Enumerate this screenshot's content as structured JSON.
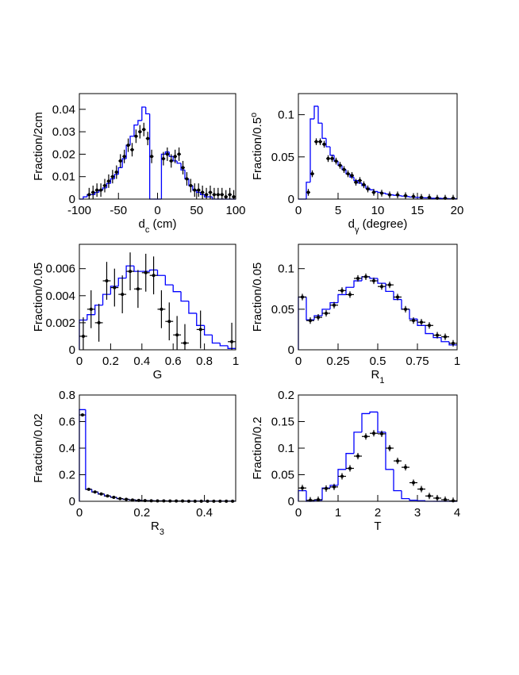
{
  "chart_data": [
    {
      "type": "histogram",
      "ylabel": {
        "text": "Fraction/2cm"
      },
      "xlabel": {
        "text": "d",
        "sub": "c",
        "suffix": " (cm)"
      },
      "xlim": [
        -100,
        100
      ],
      "xticks": [
        -100,
        -50,
        0,
        50,
        100
      ],
      "ylim": [
        0,
        0.047
      ],
      "yticks": [
        0,
        0.01,
        0.02,
        0.03,
        0.04
      ],
      "mc": {
        "color": "#0000ff",
        "bins": [
          -100,
          -95,
          -90,
          -85,
          -80,
          -75,
          -70,
          -65,
          -60,
          -55,
          -50,
          -45,
          -40,
          -35,
          -30,
          -25,
          -20,
          -15,
          -10,
          -5,
          0,
          5,
          10,
          15,
          20,
          25,
          30,
          35,
          40,
          45,
          50,
          55,
          60,
          65,
          70,
          75,
          80,
          85,
          90,
          95,
          100
        ],
        "counts": [
          0,
          0.001,
          0.002,
          0.002,
          0.003,
          0.004,
          0.005,
          0.007,
          0.009,
          0.011,
          0.014,
          0.018,
          0.024,
          0.028,
          0.033,
          0.035,
          0.041,
          0.038,
          0,
          0,
          0,
          0.02,
          0.021,
          0.019,
          0.017,
          0.016,
          0.013,
          0.009,
          0.006,
          0.004,
          0.003,
          0.002,
          0.001,
          0.001,
          0,
          0,
          0,
          0,
          0,
          0
        ]
      },
      "data": {
        "color": "#000000",
        "yerr": 0.003,
        "xerr": 2.5,
        "x": [
          -87.5,
          -82.5,
          -77.5,
          -72.5,
          -67.5,
          -62.5,
          -57.5,
          -52.5,
          -47.5,
          -42.5,
          -37.5,
          -32.5,
          -27.5,
          -22.5,
          -17.5,
          -12.5,
          -7.5,
          7.5,
          12.5,
          17.5,
          22.5,
          27.5,
          32.5,
          37.5,
          42.5,
          47.5,
          52.5,
          57.5,
          62.5,
          67.5,
          72.5,
          77.5,
          82.5,
          87.5,
          92.5,
          97.5
        ],
        "values": [
          0.002,
          0.003,
          0.004,
          0.004,
          0.006,
          0.008,
          0.01,
          0.012,
          0.017,
          0.019,
          0.024,
          0.022,
          0.028,
          0.03,
          0.031,
          0.027,
          0.019,
          0.018,
          0.02,
          0.017,
          0.019,
          0.02,
          0.014,
          0.009,
          0.006,
          0.004,
          0.004,
          0.003,
          0.002,
          0.003,
          0.002,
          0.002,
          0.002,
          0.001,
          0.002,
          0.001
        ]
      }
    },
    {
      "type": "histogram",
      "ylabel": {
        "text": "Fraction/0.5",
        "sup": "o"
      },
      "xlabel": {
        "text": "d",
        "sub": "γ",
        "suffix": " (degree)"
      },
      "xlim": [
        0,
        20
      ],
      "xticks": [
        0,
        5,
        10,
        15,
        20
      ],
      "ylim": [
        0,
        0.125
      ],
      "yticks": [
        0,
        0.05,
        0.1
      ],
      "mc": {
        "color": "#0000ff",
        "bins": [
          0,
          0.5,
          1,
          1.5,
          2,
          2.5,
          3,
          3.5,
          4,
          4.5,
          5,
          5.5,
          6,
          6.5,
          7,
          7.5,
          8,
          8.5,
          9,
          9.5,
          10,
          10.5,
          11,
          11.5,
          12,
          12.5,
          13,
          13.5,
          14,
          14.5,
          15,
          15.5,
          16,
          16.5,
          17,
          17.5,
          18,
          18.5,
          19,
          19.5,
          20
        ],
        "counts": [
          0,
          0,
          0.02,
          0.095,
          0.11,
          0.09,
          0.072,
          0.062,
          0.052,
          0.045,
          0.04,
          0.035,
          0.03,
          0.026,
          0.022,
          0.019,
          0.016,
          0.013,
          0.011,
          0.009,
          0.008,
          0.007,
          0.006,
          0.005,
          0.0045,
          0.004,
          0.0035,
          0.003,
          0.0025,
          0.002,
          0.002,
          0.0015,
          0.0015,
          0.001,
          0.001,
          0.001,
          0.0008,
          0.0006,
          0.0005,
          0.0004
        ]
      },
      "data": {
        "color": "#000000",
        "yerr": 0.004,
        "xerr": 0.25,
        "x": [
          1.25,
          1.75,
          2.25,
          2.75,
          3.25,
          3.75,
          4.25,
          4.75,
          5.25,
          5.75,
          6.25,
          6.75,
          7.25,
          7.75,
          8.25,
          8.75,
          9.5,
          10.5,
          11.5,
          12.5,
          13.5,
          14.5,
          15.5,
          16.5,
          17.5,
          18.5,
          19.5
        ],
        "values": [
          0.008,
          0.03,
          0.068,
          0.068,
          0.065,
          0.048,
          0.048,
          0.045,
          0.04,
          0.035,
          0.03,
          0.028,
          0.02,
          0.022,
          0.017,
          0.012,
          0.008,
          0.007,
          0.005,
          0.005,
          0.004,
          0.003,
          0.002,
          0.002,
          0.001,
          0.001,
          0.001
        ]
      }
    },
    {
      "type": "histogram",
      "ylabel": {
        "text": "Fraction/0.05"
      },
      "xlabel": {
        "text": "G"
      },
      "xlim": [
        0,
        1
      ],
      "xticks": [
        0,
        0.2,
        0.4,
        0.6,
        0.8,
        1
      ],
      "ylim": [
        0,
        0.0078
      ],
      "yticks": [
        0,
        0.002,
        0.004,
        0.006
      ],
      "mc": {
        "color": "#0000ff",
        "bins": [
          0,
          0.05,
          0.1,
          0.15,
          0.2,
          0.25,
          0.3,
          0.35,
          0.4,
          0.45,
          0.5,
          0.55,
          0.6,
          0.65,
          0.7,
          0.75,
          0.8,
          0.85,
          0.9,
          0.95,
          1
        ],
        "counts": [
          0.0022,
          0.0026,
          0.0033,
          0.0041,
          0.0047,
          0.0053,
          0.0062,
          0.0058,
          0.0058,
          0.0059,
          0.0055,
          0.0048,
          0.0043,
          0.0036,
          0.0027,
          0.0018,
          0.0011,
          0.0005,
          0.0003,
          0.0001
        ]
      },
      "data": {
        "color": "#000000",
        "yerr": 0.0014,
        "xerr": 0.025,
        "x": [
          0.025,
          0.075,
          0.125,
          0.175,
          0.225,
          0.275,
          0.325,
          0.375,
          0.425,
          0.475,
          0.525,
          0.575,
          0.625,
          0.675,
          0.775,
          0.975
        ],
        "values": [
          0.001,
          0.003,
          0.002,
          0.0051,
          0.0046,
          0.0041,
          0.0058,
          0.0045,
          0.0057,
          0.0055,
          0.003,
          0.0021,
          0.0011,
          0.0005,
          0.0015,
          0.0006
        ]
      }
    },
    {
      "type": "histogram",
      "ylabel": {
        "text": "Fraction/0.05"
      },
      "xlabel": {
        "text": "R",
        "sub": "1"
      },
      "xlim": [
        0,
        1
      ],
      "xticks": [
        0,
        0.25,
        0.5,
        0.75,
        1
      ],
      "ylim": [
        0,
        0.13
      ],
      "yticks": [
        0,
        0.05,
        0.1
      ],
      "mc": {
        "color": "#0000ff",
        "bins": [
          0,
          0.05,
          0.1,
          0.15,
          0.2,
          0.25,
          0.3,
          0.35,
          0.4,
          0.45,
          0.5,
          0.55,
          0.6,
          0.65,
          0.7,
          0.75,
          0.8,
          0.85,
          0.9,
          0.95,
          1
        ],
        "counts": [
          0.065,
          0.037,
          0.042,
          0.05,
          0.058,
          0.068,
          0.077,
          0.085,
          0.09,
          0.088,
          0.082,
          0.072,
          0.062,
          0.05,
          0.038,
          0.03,
          0.02,
          0.015,
          0.01,
          0.006
        ]
      },
      "data": {
        "color": "#000000",
        "yerr": 0.004,
        "xerr": 0.025,
        "x": [
          0.025,
          0.075,
          0.125,
          0.175,
          0.225,
          0.275,
          0.325,
          0.375,
          0.425,
          0.475,
          0.525,
          0.575,
          0.625,
          0.675,
          0.725,
          0.775,
          0.825,
          0.875,
          0.925,
          0.975
        ],
        "values": [
          0.065,
          0.036,
          0.04,
          0.045,
          0.055,
          0.073,
          0.068,
          0.088,
          0.09,
          0.085,
          0.078,
          0.08,
          0.065,
          0.05,
          0.036,
          0.034,
          0.03,
          0.018,
          0.016,
          0.008
        ]
      }
    },
    {
      "type": "histogram",
      "ylabel": {
        "text": "Fraction/0.02"
      },
      "xlabel": {
        "text": "R",
        "sub": "3"
      },
      "xlim": [
        0,
        0.5
      ],
      "xticks": [
        0,
        0.2,
        0.4
      ],
      "ylim": [
        0,
        0.8
      ],
      "yticks": [
        0,
        0.2,
        0.4,
        0.6,
        0.8
      ],
      "mc": {
        "color": "#0000ff",
        "bins": [
          0,
          0.02,
          0.04,
          0.06,
          0.08,
          0.1,
          0.12,
          0.14,
          0.16,
          0.18,
          0.2,
          0.22,
          0.24,
          0.26,
          0.28,
          0.3,
          0.32,
          0.34,
          0.36,
          0.38,
          0.4,
          0.42,
          0.44,
          0.46,
          0.48,
          0.5
        ],
        "counts": [
          0.69,
          0.09,
          0.07,
          0.055,
          0.04,
          0.03,
          0.02,
          0.015,
          0.01,
          0.007,
          0.005,
          0.004,
          0.003,
          0.003,
          0.002,
          0.002,
          0.002,
          0.001,
          0.001,
          0.001,
          0.001,
          0.001,
          0.001,
          0.001,
          0.001
        ]
      },
      "data": {
        "color": "#000000",
        "yerr": 0.006,
        "xerr": 0.01,
        "x": [
          0.01,
          0.03,
          0.05,
          0.07,
          0.09,
          0.11,
          0.13,
          0.15,
          0.17,
          0.19,
          0.21,
          0.23,
          0.25,
          0.27,
          0.29,
          0.31,
          0.33,
          0.35,
          0.37,
          0.39,
          0.41,
          0.43,
          0.45,
          0.47,
          0.49
        ],
        "values": [
          0.65,
          0.09,
          0.07,
          0.055,
          0.04,
          0.03,
          0.02,
          0.015,
          0.01,
          0.007,
          0.005,
          0.004,
          0.003,
          0.003,
          0.002,
          0.002,
          0.002,
          0.001,
          0.001,
          0.001,
          0.001,
          0.001,
          0.001,
          0.001,
          0.001
        ]
      }
    },
    {
      "type": "histogram",
      "ylabel": {
        "text": "Fraction/0.2"
      },
      "xlabel": {
        "text": "T"
      },
      "xlim": [
        0,
        4
      ],
      "xticks": [
        0,
        1,
        2,
        3,
        4
      ],
      "ylim": [
        0,
        0.2
      ],
      "yticks": [
        0,
        0.05,
        0.1,
        0.15,
        0.2
      ],
      "mc": {
        "color": "#0000ff",
        "bins": [
          0,
          0.2,
          0.4,
          0.6,
          0.8,
          1,
          1.2,
          1.4,
          1.6,
          1.8,
          2,
          2.2,
          2.4,
          2.6,
          2.8,
          3,
          3.2,
          3.4,
          3.6,
          3.8,
          4
        ],
        "counts": [
          0.02,
          0,
          0.002,
          0.025,
          0.03,
          0.06,
          0.09,
          0.13,
          0.165,
          0.168,
          0.13,
          0.06,
          0.02,
          0.005,
          0.002,
          0.001,
          0,
          0,
          0,
          0
        ]
      },
      "data": {
        "color": "#000000",
        "yerr": 0.006,
        "xerr": 0.1,
        "x": [
          0.1,
          0.3,
          0.5,
          0.7,
          0.9,
          1.1,
          1.3,
          1.5,
          1.7,
          1.9,
          2.1,
          2.3,
          2.5,
          2.7,
          2.9,
          3.1,
          3.3,
          3.5,
          3.7,
          3.9
        ],
        "values": [
          0.025,
          0.002,
          0.003,
          0.024,
          0.027,
          0.047,
          0.062,
          0.085,
          0.122,
          0.128,
          0.127,
          0.1,
          0.076,
          0.064,
          0.035,
          0.023,
          0.01,
          0.006,
          0.003,
          0.001
        ]
      }
    }
  ]
}
